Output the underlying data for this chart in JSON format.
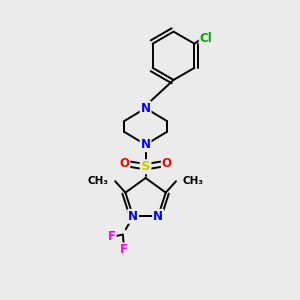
{
  "background_color": "#ebebeb",
  "bond_color": "#000000",
  "bond_width": 1.4,
  "atom_colors": {
    "N": "#0000ff",
    "O": "#ff0000",
    "S": "#cccc00",
    "Cl": "#00aa00",
    "F": "#ff00ff",
    "C": "#000000"
  },
  "font_size_atom": 8.5,
  "font_size_small": 7.5
}
